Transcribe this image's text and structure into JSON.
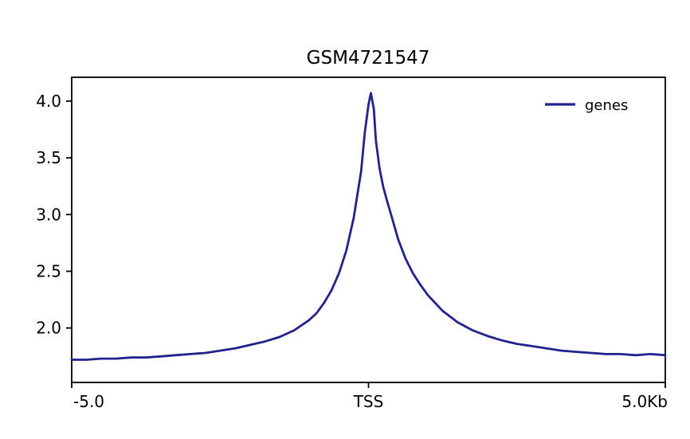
{
  "chart_data": {
    "type": "line",
    "title": "GSM4721547",
    "xlabel": "",
    "ylabel": "",
    "xlim": [
      -5,
      5
    ],
    "ylim": [
      1.52,
      4.21
    ],
    "grid": false,
    "legend_position": "upper right",
    "x": [
      -5,
      -4.75,
      -4.5,
      -4.25,
      -4,
      -3.75,
      -3.5,
      -3.25,
      -3,
      -2.75,
      -2.5,
      -2.25,
      -2,
      -1.75,
      -1.5,
      -1.25,
      -1,
      -0.875,
      -0.75,
      -0.625,
      -0.5,
      -0.375,
      -0.25,
      -0.125,
      -0.0625,
      0,
      0.04,
      0.09,
      0.125,
      0.1875,
      0.25,
      0.3125,
      0.375,
      0.5,
      0.625,
      0.75,
      0.875,
      1,
      1.25,
      1.5,
      1.75,
      2,
      2.25,
      2.5,
      2.75,
      3,
      3.25,
      3.5,
      3.75,
      4,
      4.25,
      4.5,
      4.75,
      5
    ],
    "series": [
      {
        "name": "genes",
        "color": "#22228f",
        "values": [
          1.72,
          1.72,
          1.73,
          1.73,
          1.74,
          1.74,
          1.75,
          1.76,
          1.77,
          1.78,
          1.8,
          1.82,
          1.85,
          1.88,
          1.92,
          1.98,
          2.07,
          2.13,
          2.22,
          2.33,
          2.48,
          2.68,
          2.97,
          3.38,
          3.72,
          3.97,
          4.07,
          3.93,
          3.65,
          3.4,
          3.24,
          3.12,
          3.01,
          2.78,
          2.61,
          2.48,
          2.38,
          2.29,
          2.15,
          2.05,
          1.98,
          1.93,
          1.89,
          1.86,
          1.84,
          1.82,
          1.8,
          1.79,
          1.78,
          1.77,
          1.77,
          1.76,
          1.77,
          1.76
        ]
      }
    ],
    "xticks": [
      {
        "value": -5,
        "label": "-5.0"
      },
      {
        "value": 0,
        "label": "TSS"
      },
      {
        "value": 5,
        "label": "5.0Kb"
      }
    ],
    "yticks": [
      {
        "value": 2.0,
        "label": "2.0"
      },
      {
        "value": 2.5,
        "label": "2.5"
      },
      {
        "value": 3.0,
        "label": "3.0"
      },
      {
        "value": 3.5,
        "label": "3.5"
      },
      {
        "value": 4.0,
        "label": "4.0"
      }
    ],
    "axis_color": "#000000"
  }
}
